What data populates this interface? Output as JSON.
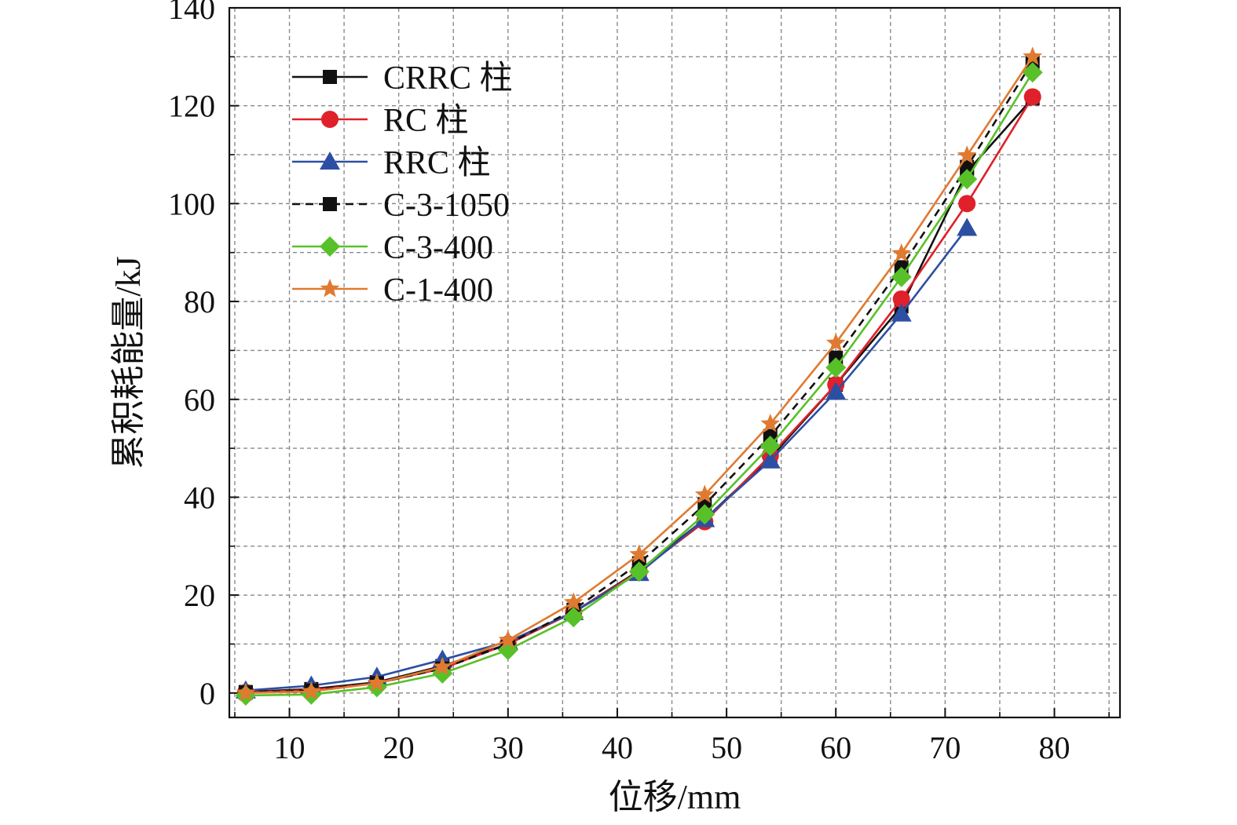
{
  "chart_data": {
    "type": "line",
    "title": "",
    "xlabel": "位移/mm",
    "ylabel": "累积耗能量/kJ",
    "xlim": [
      4.5,
      86
    ],
    "ylim": [
      -5,
      140
    ],
    "xticks": [
      10,
      20,
      30,
      40,
      50,
      60,
      70,
      80
    ],
    "yticks": [
      0,
      20,
      40,
      60,
      80,
      100,
      120,
      140
    ],
    "grid": true,
    "legend_position": "top-left",
    "x": [
      6,
      12,
      18,
      24,
      30,
      36,
      42,
      48,
      54,
      60,
      66,
      72,
      78
    ],
    "series": [
      {
        "name": "CRRC 柱",
        "color": "#111111",
        "marker": "square",
        "dash": "solid",
        "values": [
          0.2,
          0.8,
          2.2,
          5.5,
          10.0,
          16.5,
          25.0,
          35.5,
          48.0,
          63.0,
          79.0,
          106.5,
          121.5
        ]
      },
      {
        "name": "RC 柱",
        "color": "#e0202a",
        "marker": "circle",
        "dash": "solid",
        "values": [
          0.1,
          0.6,
          2.0,
          5.0,
          10.0,
          16.5,
          24.8,
          35.0,
          48.5,
          63.0,
          80.5,
          100.0,
          121.8
        ]
      },
      {
        "name": "RRC 柱",
        "color": "#2d4fa3",
        "marker": "triangle",
        "dash": "solid",
        "values": [
          0.5,
          1.5,
          3.3,
          6.8,
          10.5,
          16.5,
          24.5,
          35.5,
          47.5,
          61.5,
          77.5,
          95.0,
          null
        ]
      },
      {
        "name": "C-3-1050",
        "color": "#111111",
        "marker": "square",
        "dash": "dashed",
        "values": [
          0.1,
          0.5,
          2.0,
          5.0,
          10.0,
          17.0,
          26.5,
          38.5,
          52.5,
          68.5,
          87.0,
          107.5,
          129.0
        ]
      },
      {
        "name": "C-3-400",
        "color": "#58c12a",
        "marker": "diamond",
        "dash": "solid",
        "values": [
          -0.5,
          -0.3,
          1.2,
          4.0,
          8.8,
          15.5,
          24.8,
          36.5,
          50.5,
          66.5,
          85.0,
          105.0,
          126.8
        ]
      },
      {
        "name": "C-1-400",
        "color": "#e07a30",
        "marker": "star",
        "dash": "solid",
        "values": [
          0.0,
          0.3,
          2.0,
          5.3,
          10.8,
          18.5,
          28.3,
          40.5,
          55.0,
          71.5,
          89.8,
          109.8,
          130.0
        ]
      }
    ]
  }
}
